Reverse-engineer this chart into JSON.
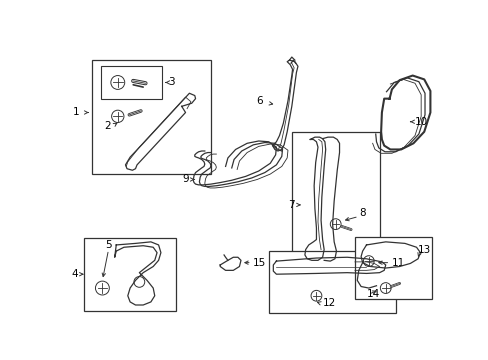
{
  "background_color": "#ffffff",
  "line_color": "#333333",
  "label_fontsize": 7.5,
  "lw": 0.9,
  "lw_thick": 1.5
}
